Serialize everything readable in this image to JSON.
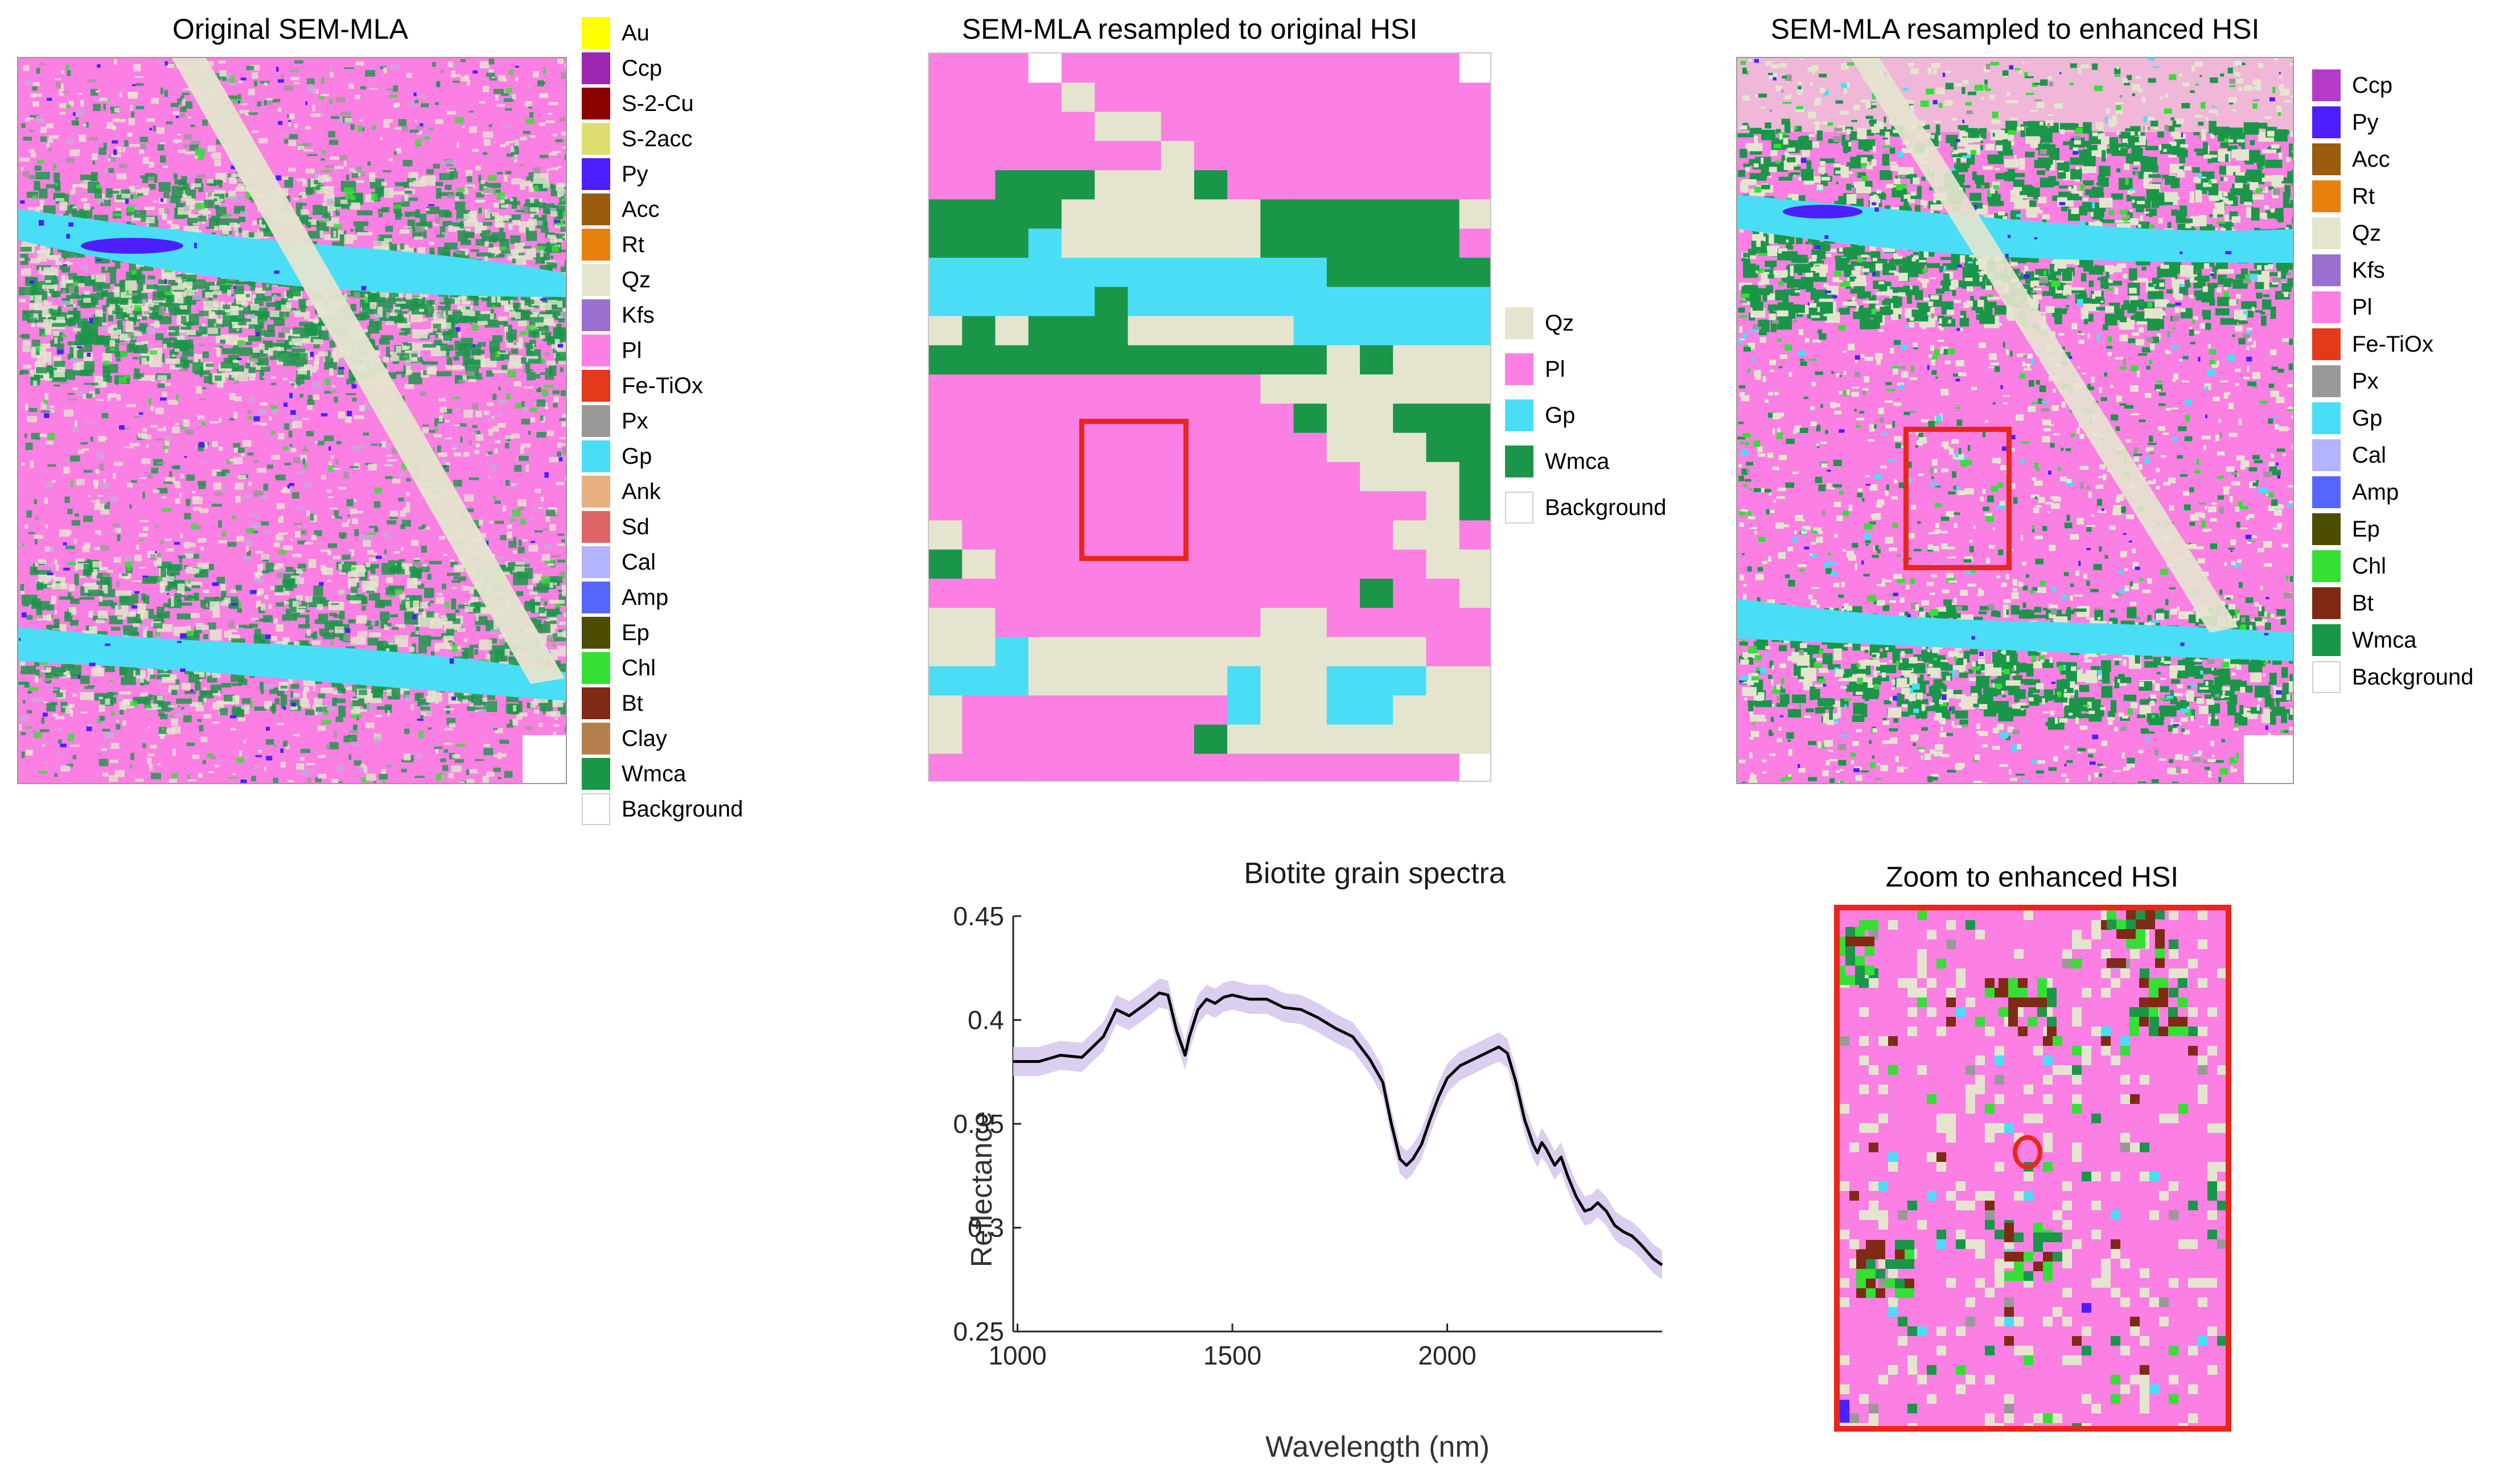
{
  "figure": {
    "panel_a": {
      "title": "Original SEM-MLA",
      "legend": [
        {
          "label": "Au",
          "color": "#ffff00"
        },
        {
          "label": "Ccp",
          "color": "#9c27b0"
        },
        {
          "label": "S-2-Cu",
          "color": "#8b0000"
        },
        {
          "label": "S-2acc",
          "color": "#dede70"
        },
        {
          "label": "Py",
          "color": "#4d1fff"
        },
        {
          "label": "Acc",
          "color": "#9a5c0d"
        },
        {
          "label": "Rt",
          "color": "#e8810d"
        },
        {
          "label": "Qz",
          "color": "#e5e5cf"
        },
        {
          "label": "Kfs",
          "color": "#9a6fd0"
        },
        {
          "label": "Pl",
          "color": "#fc7fe3"
        },
        {
          "label": "Fe-TiOx",
          "color": "#e5391c"
        },
        {
          "label": "Px",
          "color": "#999999"
        },
        {
          "label": "Gp",
          "color": "#49def6"
        },
        {
          "label": "Ank",
          "color": "#e8b07f"
        },
        {
          "label": "Sd",
          "color": "#e06666"
        },
        {
          "label": "Cal",
          "color": "#b3b3ff"
        },
        {
          "label": "Amp",
          "color": "#5566ff"
        },
        {
          "label": "Ep",
          "color": "#4d4d00"
        },
        {
          "label": "Chl",
          "color": "#33e033"
        },
        {
          "label": "Bt",
          "color": "#7f2a15"
        },
        {
          "label": "Clay",
          "color": "#b5804d"
        },
        {
          "label": "Wmca",
          "color": "#1a9649"
        },
        {
          "label": "Background",
          "color": "#ffffff"
        }
      ]
    },
    "panel_b": {
      "title": "SEM-MLA resampled to original HSI",
      "legend": [
        {
          "label": "Qz",
          "color": "#e5e5cf"
        },
        {
          "label": "Pl",
          "color": "#fc7fe3"
        },
        {
          "label": "Gp",
          "color": "#49def6"
        },
        {
          "label": "Wmca",
          "color": "#1a9649"
        },
        {
          "label": "Background",
          "color": "#ffffff"
        }
      ]
    },
    "panel_c": {
      "title": "SEM-MLA resampled to enhanced HSI",
      "legend": [
        {
          "label": "Ccp",
          "color": "#b43cc8"
        },
        {
          "label": "Py",
          "color": "#4d1fff"
        },
        {
          "label": "Acc",
          "color": "#9a5c0d"
        },
        {
          "label": "Rt",
          "color": "#e8810d"
        },
        {
          "label": "Qz",
          "color": "#e5e5cf"
        },
        {
          "label": "Kfs",
          "color": "#9a6fd0"
        },
        {
          "label": "Pl",
          "color": "#fc7fe3"
        },
        {
          "label": "Fe-TiOx",
          "color": "#e5391c"
        },
        {
          "label": "Px",
          "color": "#999999"
        },
        {
          "label": "Gp",
          "color": "#49def6"
        },
        {
          "label": "Cal",
          "color": "#b3b3ff"
        },
        {
          "label": "Amp",
          "color": "#5566ff"
        },
        {
          "label": "Ep",
          "color": "#4d4d00"
        },
        {
          "label": "Chl",
          "color": "#33e033"
        },
        {
          "label": "Bt",
          "color": "#7f2a15"
        },
        {
          "label": "Wmca",
          "color": "#1a9649"
        },
        {
          "label": "Background",
          "color": "#ffffff"
        }
      ]
    },
    "panel_d": {
      "title": "Zoom to enhanced HSI"
    },
    "colors": {
      "highlight": "#e8261c",
      "spectrum_line": "#000000",
      "spectrum_band": "#d8c9ee"
    }
  },
  "chart_data": {
    "type": "line",
    "title": "Biotite grain spectra",
    "xlabel": "Wavelength (nm)",
    "ylabel": "Reflectance",
    "xlim": [
      990,
      2500
    ],
    "ylim": [
      0.25,
      0.45
    ],
    "xticks": [
      1000,
      1500,
      2000
    ],
    "yticks": [
      0.25,
      0.3,
      0.35,
      0.4,
      0.45
    ],
    "series": [
      {
        "name": "Biotite mean spectrum",
        "x": [
          990,
          1050,
          1100,
          1150,
          1180,
          1200,
          1230,
          1260,
          1300,
          1330,
          1350,
          1370,
          1390,
          1400,
          1420,
          1440,
          1460,
          1480,
          1500,
          1540,
          1580,
          1620,
          1660,
          1700,
          1740,
          1780,
          1820,
          1850,
          1870,
          1890,
          1905,
          1920,
          1940,
          1960,
          1980,
          2000,
          2030,
          2060,
          2090,
          2120,
          2140,
          2160,
          2180,
          2200,
          2210,
          2220,
          2230,
          2250,
          2265,
          2280,
          2300,
          2320,
          2335,
          2350,
          2370,
          2390,
          2410,
          2430,
          2450,
          2480,
          2500
        ],
        "values": [
          0.38,
          0.38,
          0.383,
          0.382,
          0.388,
          0.392,
          0.405,
          0.402,
          0.408,
          0.413,
          0.412,
          0.395,
          0.383,
          0.392,
          0.405,
          0.41,
          0.408,
          0.411,
          0.412,
          0.41,
          0.41,
          0.406,
          0.405,
          0.401,
          0.396,
          0.392,
          0.381,
          0.37,
          0.35,
          0.333,
          0.33,
          0.333,
          0.34,
          0.352,
          0.363,
          0.372,
          0.378,
          0.381,
          0.384,
          0.387,
          0.384,
          0.37,
          0.352,
          0.34,
          0.336,
          0.341,
          0.338,
          0.33,
          0.334,
          0.325,
          0.315,
          0.308,
          0.309,
          0.312,
          0.308,
          0.301,
          0.298,
          0.296,
          0.292,
          0.285,
          0.282
        ]
      }
    ]
  }
}
